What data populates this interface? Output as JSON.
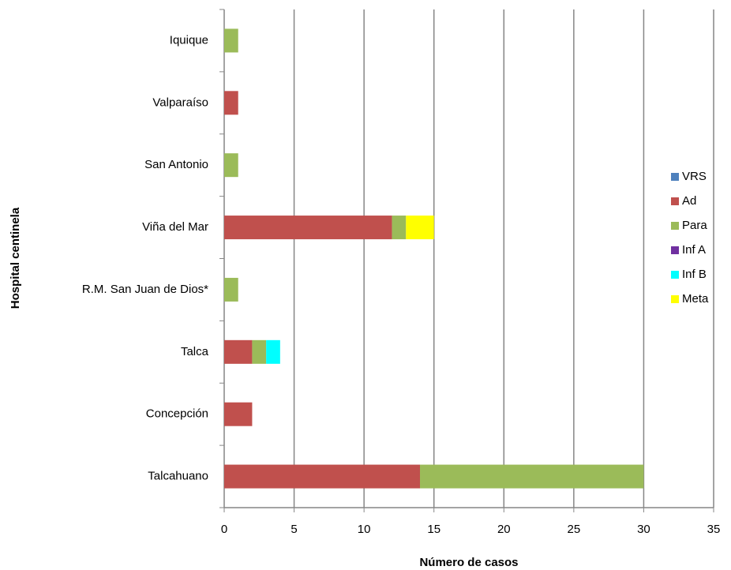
{
  "chart_data": {
    "type": "stacked_bar_horizontal",
    "x_label": "Número de casos",
    "y_label": "Hospital centinela",
    "categories": [
      "Iquique",
      "Valparaíso",
      "San Antonio",
      "Viña del Mar",
      "R.M. San Juan de Dios*",
      "Talca",
      "Concepción",
      "Talcahuano"
    ],
    "series": [
      {
        "name": "VRS",
        "color": "#4f81bd",
        "values": [
          0,
          0,
          0,
          0,
          0,
          0,
          0,
          0
        ]
      },
      {
        "name": "Ad",
        "color": "#c0504d",
        "values": [
          0,
          1,
          0,
          12,
          0,
          2,
          2,
          14
        ]
      },
      {
        "name": "Para",
        "color": "#9bbb59",
        "values": [
          1,
          0,
          1,
          1,
          1,
          1,
          0,
          16
        ]
      },
      {
        "name": "Inf A",
        "color": "#7030a0",
        "values": [
          0,
          0,
          0,
          0,
          0,
          0,
          0,
          0
        ]
      },
      {
        "name": "Inf B",
        "color": "#00ffff",
        "values": [
          0,
          0,
          0,
          0,
          0,
          1,
          0,
          0
        ]
      },
      {
        "name": "Meta",
        "color": "#ffff00",
        "values": [
          0,
          0,
          0,
          2,
          0,
          0,
          0,
          0
        ]
      }
    ],
    "xlim": [
      0,
      35
    ],
    "xticks": [
      0,
      5,
      10,
      15,
      20,
      25,
      30,
      35
    ],
    "grid": true,
    "legend": "right"
  }
}
